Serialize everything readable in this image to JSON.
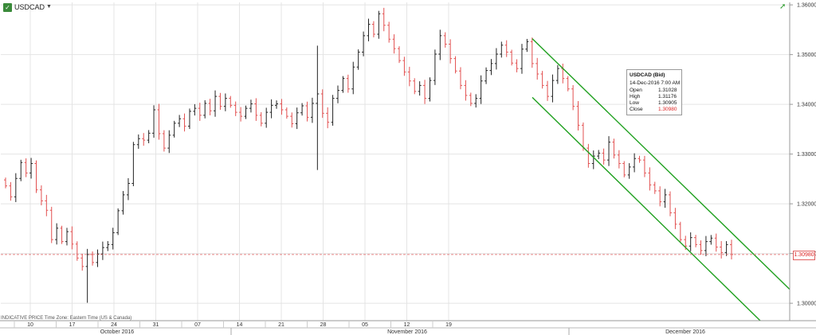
{
  "header": {
    "icon": "chart-icon",
    "symbol": "USDCAD",
    "menu_icon": "caret-down-icon",
    "arrow_icon": "expand-arrow-icon"
  },
  "tooltip": {
    "title": "USDCAD (Bid)",
    "datetime": "14-Dec-2016 7:00 AM",
    "rows": [
      {
        "label": "Open",
        "value": "1.31028"
      },
      {
        "label": "High",
        "value": "1.31176"
      },
      {
        "label": "Low",
        "value": "1.30905"
      },
      {
        "label": "Close",
        "value": "1.30980"
      }
    ]
  },
  "current_price_label": "1.30980",
  "footer_text": "INDICATIVE PRICE  Time Zone: Eastern Time (US & Canada)",
  "colors": {
    "up": "#222222",
    "down": "#e25050",
    "channel": "#1fa01f",
    "grid": "#e4e4e4",
    "price_line": "#e06060"
  },
  "chart_data": {
    "type": "ohlc",
    "ylim": [
      1.2965,
      1.3605
    ],
    "y_ticks": [
      "1.30000",
      "1.31000",
      "1.32000",
      "1.33000",
      "1.34000",
      "1.35000",
      "1.36000"
    ],
    "x_day_ticks": [
      "10",
      "17",
      "24",
      "31",
      "07",
      "14",
      "21",
      "28",
      "05",
      "12",
      "19"
    ],
    "x_month_labels": [
      "October 2016",
      "November 2016",
      "December 2016"
    ],
    "current_price": 1.3098,
    "closes": [
      1.3236,
      1.3214,
      1.3251,
      1.3283,
      1.3262,
      1.3281,
      1.3228,
      1.3206,
      1.3187,
      1.3128,
      1.3151,
      1.3124,
      1.3144,
      1.3119,
      1.3091,
      1.3074,
      1.3098,
      1.3082,
      1.3099,
      1.3112,
      1.3118,
      1.3142,
      1.3186,
      1.3218,
      1.3241,
      1.3319,
      1.3331,
      1.3328,
      1.3342,
      1.3389,
      1.3341,
      1.3312,
      1.3338,
      1.3362,
      1.3371,
      1.3356,
      1.3386,
      1.3392,
      1.3378,
      1.3402,
      1.3387,
      1.3416,
      1.3396,
      1.3412,
      1.3398,
      1.3384,
      1.3376,
      1.3392,
      1.3401,
      1.3378,
      1.3362,
      1.3384,
      1.3398,
      1.3401,
      1.3389,
      1.3376,
      1.3361,
      1.3383,
      1.3397,
      1.3374,
      1.3402,
      1.3421,
      1.3382,
      1.3364,
      1.3412,
      1.3428,
      1.3452,
      1.3431,
      1.3475,
      1.3505,
      1.3538,
      1.3561,
      1.3541,
      1.3582,
      1.3559,
      1.3531,
      1.3512,
      1.3488,
      1.3465,
      1.3447,
      1.3426,
      1.3438,
      1.3412,
      1.3448,
      1.3501,
      1.3538,
      1.3521,
      1.3492,
      1.3467,
      1.3438,
      1.3418,
      1.3402,
      1.3412,
      1.3447,
      1.3468,
      1.3482,
      1.3501,
      1.3519,
      1.3505,
      1.3483,
      1.3472,
      1.3511,
      1.3526,
      1.3482,
      1.3461,
      1.3438,
      1.3416,
      1.3448,
      1.3472,
      1.3452,
      1.3431,
      1.3396,
      1.3358,
      1.3312,
      1.3281,
      1.3296,
      1.3302,
      1.3288,
      1.3324,
      1.3298,
      1.3281,
      1.3258,
      1.3274,
      1.3291,
      1.3288,
      1.3262,
      1.3238,
      1.3226,
      1.3204,
      1.3218,
      1.3182,
      1.3159,
      1.3128,
      1.3115,
      1.3132,
      1.3118,
      1.3106,
      1.3124,
      1.3131,
      1.3113,
      1.3102,
      1.3118,
      1.3098
    ]
  }
}
